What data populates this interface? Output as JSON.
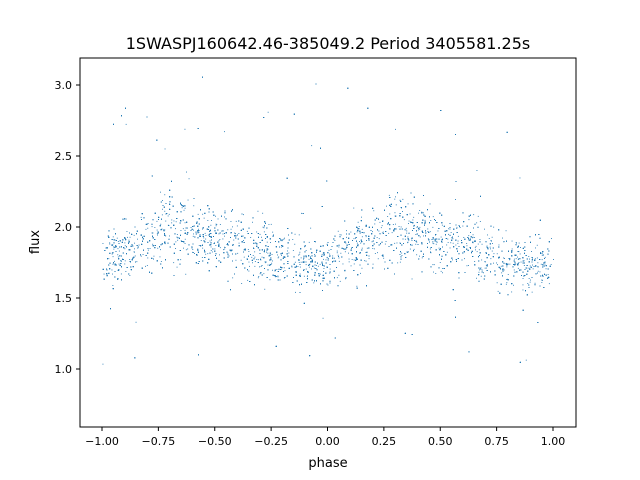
{
  "chart_data": {
    "type": "scatter",
    "title": "1SWASPJ160642.46-385049.2 Period 3405581.25s",
    "xlabel": "phase",
    "ylabel": "flux",
    "xlim": [
      -1.1,
      1.1
    ],
    "ylim": [
      0.58,
      3.2
    ],
    "grid": false,
    "marker_color": "#1f77b4",
    "xticks": [
      -1.0,
      -0.75,
      -0.5,
      -0.25,
      0.0,
      0.25,
      0.5,
      0.75,
      1.0
    ],
    "xtick_labels": [
      "−1.00",
      "−0.75",
      "−0.50",
      "−0.25",
      "0.00",
      "0.25",
      "0.50",
      "0.75",
      "1.00"
    ],
    "yticks": [
      1.0,
      1.5,
      2.0,
      2.5,
      3.0
    ],
    "ytick_labels": [
      "1.0",
      "1.5",
      "2.0",
      "2.5",
      "3.0"
    ],
    "binned_profile": {
      "phase": [
        0.0,
        0.1,
        0.2,
        0.3,
        0.4,
        0.5,
        0.6,
        0.7,
        0.8,
        0.9,
        1.0
      ],
      "median_flux": [
        1.75,
        1.85,
        1.9,
        2.0,
        1.95,
        1.93,
        1.9,
        1.82,
        1.75,
        1.75,
        1.75
      ],
      "scatter": [
        0.15,
        0.18,
        0.2,
        0.22,
        0.18,
        0.17,
        0.2,
        0.2,
        0.17,
        0.15,
        0.15
      ],
      "mirrored_for_negative_phase": true
    }
  }
}
